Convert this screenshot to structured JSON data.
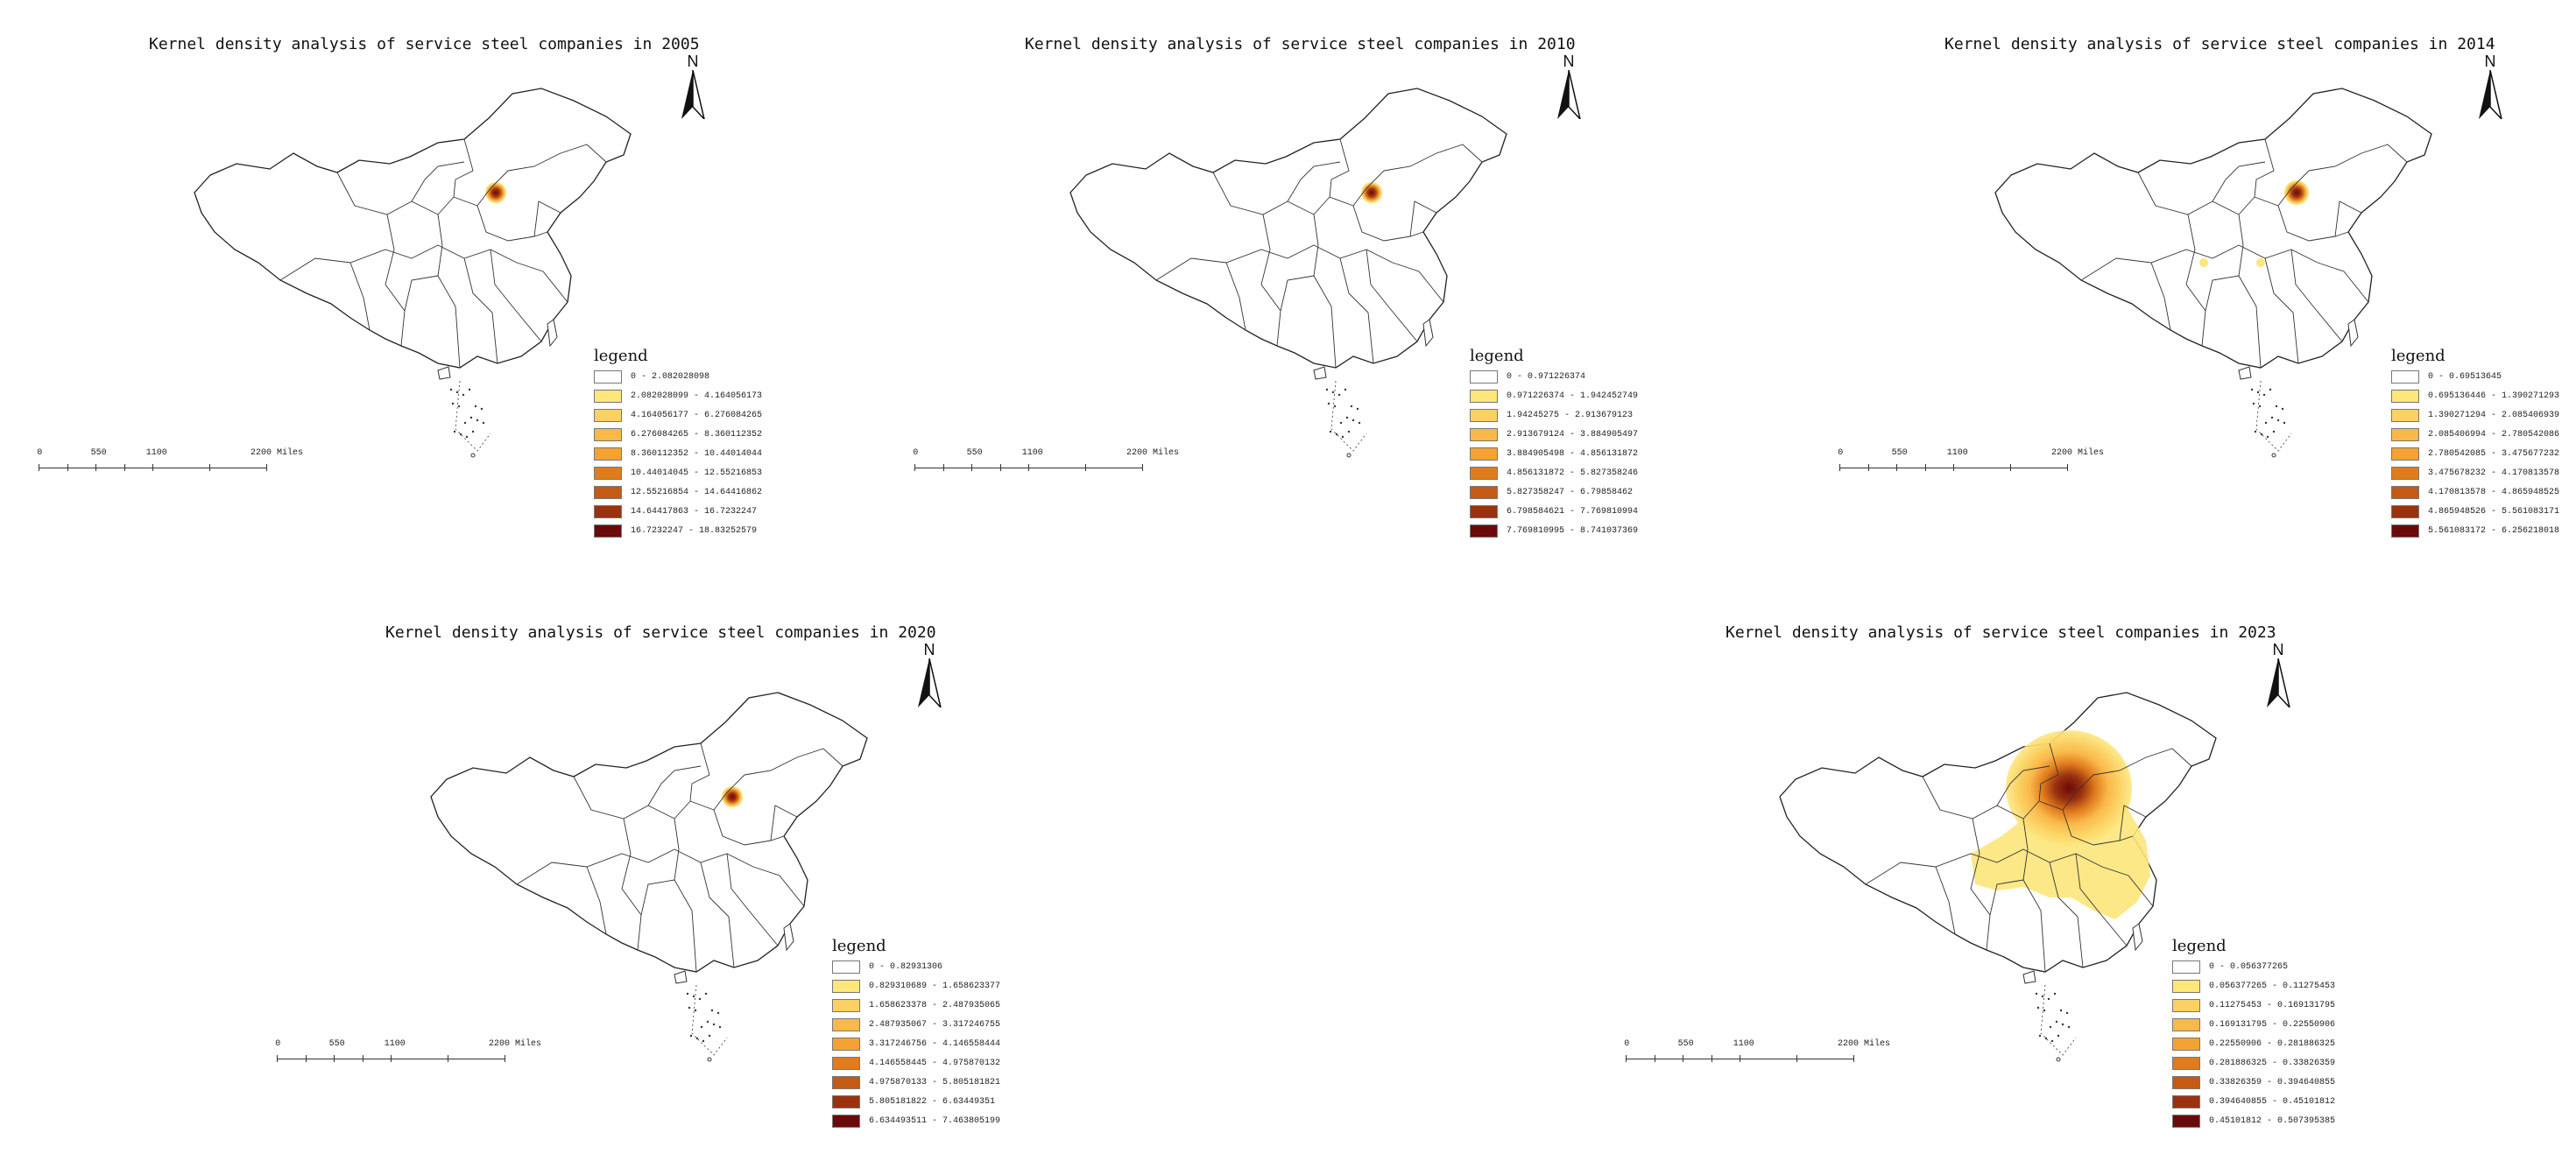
{
  "colors": [
    "#ffffff",
    "#fde67a",
    "#fbd163",
    "#f9b84a",
    "#f5a232",
    "#e07b1e",
    "#c55a14",
    "#9a3210",
    "#6b0a0a"
  ],
  "panels": [
    {
      "title": "Kernel density analysis of service steel companies in 2005",
      "north": "N",
      "scale": {
        "labels": [
          "0",
          "550",
          "1100",
          "2200 Miles"
        ]
      },
      "legend": {
        "title": "legend",
        "ranges": [
          "0 - 2.082028098",
          "2.082028099 - 4.164056173",
          "4.164056177 - 6.276084265",
          "6.276084265 - 8.360112352",
          "8.360112352 - 10.44014044",
          "10.44014045 - 12.55216853",
          "12.55216854 - 14.64416862",
          "14.64417863 - 16.7232247",
          "16.7232247 - 18.83252579"
        ]
      }
    },
    {
      "title": "Kernel density analysis of service steel companies in 2010",
      "north": "N",
      "scale": {
        "labels": [
          "0",
          "550",
          "1100",
          "2200 Miles"
        ]
      },
      "legend": {
        "title": "legend",
        "ranges": [
          "0 - 0.971226374",
          "0.971226374 - 1.942452749",
          "1.94245275 - 2.913679123",
          "2.913679124 - 3.884905497",
          "3.884905498 - 4.856131872",
          "4.856131872 - 5.827358246",
          "5.827358247 - 6.79858462",
          "6.798584621 - 7.769810994",
          "7.769810995 - 8.741037369"
        ]
      }
    },
    {
      "title": "Kernel density analysis of service steel companies in 2014",
      "north": "N",
      "scale": {
        "labels": [
          "0",
          "550",
          "1100",
          "2200 Miles"
        ]
      },
      "legend": {
        "title": "legend",
        "ranges": [
          "0 - 0.69513645",
          "0.695136446 - 1.390271293",
          "1.390271294 - 2.085406939",
          "2.085406994 - 2.780542086",
          "2.780542085 - 3.475677232",
          "3.475678232 - 4.170813578",
          "4.170813578 - 4.865948525",
          "4.865948526 - 5.561083171",
          "5.561083172 - 6.256218018"
        ]
      }
    },
    {
      "title": "Kernel density analysis of service steel companies in 2020",
      "north": "N",
      "scale": {
        "labels": [
          "0",
          "550",
          "1100",
          "2200 Miles"
        ]
      },
      "legend": {
        "title": "legend",
        "ranges": [
          "0 - 0.82931306",
          "0.829310689 - 1.658623377",
          "1.658623378 - 2.487935065",
          "2.487935067 - 3.317246755",
          "3.317246756 - 4.146558444",
          "4.146558445 - 4.975870132",
          "4.975870133 - 5.805181821",
          "5.805181822 - 6.63449351",
          "6.634493511 - 7.463805199"
        ]
      }
    },
    {
      "title": "Kernel density analysis of service steel companies in 2023",
      "north": "N",
      "scale": {
        "labels": [
          "0",
          "550",
          "1100",
          "2200 Miles"
        ]
      },
      "legend": {
        "title": "legend",
        "ranges": [
          "0 - 0.056377265",
          "0.056377265 - 0.11275453",
          "0.11275453 - 0.169131795",
          "0.169131795 - 0.22550906",
          "0.22550906 - 0.281886325",
          "0.281886325 - 0.33826359",
          "0.33826359 - 0.394640855",
          "0.394640855 - 0.45101812",
          "0.45101812 - 0.507395385"
        ]
      }
    }
  ]
}
